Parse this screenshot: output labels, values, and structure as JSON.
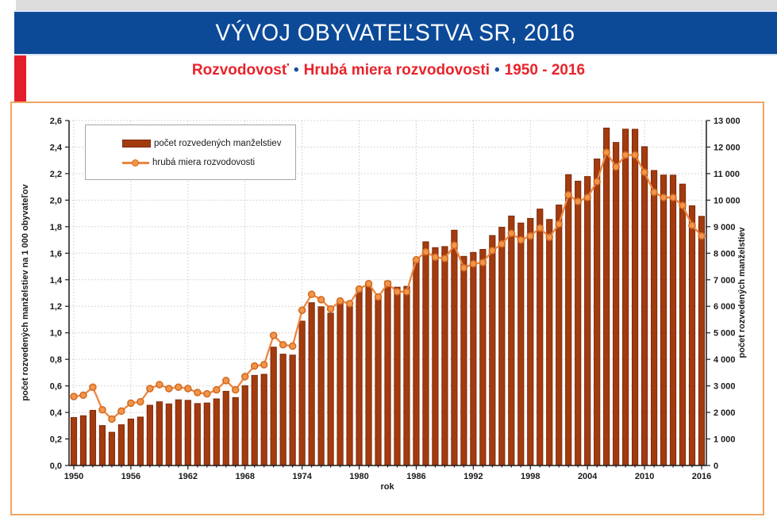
{
  "header": {
    "title": "VÝVOJ OBYVATEĽSTVA SR, 2016"
  },
  "subtitle": {
    "part1": "Rozvodovosť",
    "bullet": "•",
    "part2": "Hrubá miera rozvodovosti",
    "part3": "1950 - 2016",
    "text_color": "#E8232A",
    "bullet_color": "#1B4E9E"
  },
  "colors": {
    "header_bg": "#0C4A98",
    "accent_red": "#E31E2B",
    "box_border": "#F2A563",
    "bar_fill": "#A33B0E",
    "bar_stroke": "#7C2A0C",
    "line": "#EE8640",
    "marker_fill": "#F2954A",
    "marker_stroke": "#D2691E",
    "gridline": "#C9C9C9",
    "axis": "#1a1a1a"
  },
  "chart_data": {
    "type": "bar",
    "subtype": "bar+line combo, dual axis",
    "title": "Rozvodovosť • Hrubá miera rozvodovosti • 1950 - 2016",
    "x": [
      1950,
      1951,
      1952,
      1953,
      1954,
      1955,
      1956,
      1957,
      1958,
      1959,
      1960,
      1961,
      1962,
      1963,
      1964,
      1965,
      1966,
      1967,
      1968,
      1969,
      1970,
      1971,
      1972,
      1973,
      1974,
      1975,
      1976,
      1977,
      1978,
      1979,
      1980,
      1981,
      1982,
      1983,
      1984,
      1985,
      1986,
      1987,
      1988,
      1989,
      1990,
      1991,
      1992,
      1993,
      1994,
      1995,
      1996,
      1997,
      1998,
      1999,
      2000,
      2001,
      2002,
      2003,
      2004,
      2005,
      2006,
      2007,
      2008,
      2009,
      2010,
      2011,
      2012,
      2013,
      2014,
      2015,
      2016
    ],
    "series": [
      {
        "name": "počet rozvedených manželstiev",
        "type": "bar",
        "axis": "right",
        "values": [
          1807,
          1874,
          2078,
          1505,
          1251,
          1535,
          1752,
          1825,
          2270,
          2400,
          2320,
          2475,
          2455,
          2335,
          2355,
          2510,
          2795,
          2560,
          3005,
          3395,
          3437,
          4460,
          4195,
          4160,
          5440,
          6135,
          5980,
          5740,
          6130,
          6000,
          6645,
          6870,
          6420,
          6950,
          6720,
          6750,
          7776,
          8430,
          8210,
          8250,
          8867,
          7881,
          8030,
          8143,
          8666,
          8978,
          9402,
          9138,
          9312,
          9664,
          9273,
          9817,
          10960,
          10716,
          10889,
          11553,
          12716,
          12174,
          12675,
          12671,
          12015,
          11117,
          10945,
          10942,
          10604,
          9786,
          9389
        ]
      },
      {
        "name": "hrubá miera rozvodovosti",
        "type": "line",
        "axis": "left",
        "values": [
          0.52,
          0.53,
          0.59,
          0.42,
          0.35,
          0.41,
          0.47,
          0.48,
          0.58,
          0.61,
          0.58,
          0.59,
          0.58,
          0.55,
          0.54,
          0.57,
          0.64,
          0.57,
          0.67,
          0.75,
          0.76,
          0.98,
          0.91,
          0.9,
          1.17,
          1.29,
          1.25,
          1.18,
          1.24,
          1.22,
          1.33,
          1.37,
          1.27,
          1.37,
          1.31,
          1.31,
          1.55,
          1.61,
          1.57,
          1.56,
          1.66,
          1.49,
          1.52,
          1.53,
          1.62,
          1.67,
          1.75,
          1.7,
          1.73,
          1.79,
          1.72,
          1.82,
          2.04,
          1.99,
          2.02,
          2.14,
          2.36,
          2.25,
          2.34,
          2.34,
          2.21,
          2.06,
          2.02,
          2.02,
          1.96,
          1.81,
          1.73
        ]
      }
    ],
    "left_axis": {
      "label": "počet rozvedených manželstiev na 1 000 obyvateľov",
      "min": 0.0,
      "max": 2.6,
      "step": 0.2,
      "decimal_separator": ","
    },
    "right_axis": {
      "label": "počet rozvedených manželstiev",
      "min": 0,
      "max": 13000,
      "step": 1000,
      "thousands_separator": " "
    },
    "x_axis": {
      "label": "rok",
      "tick_years": [
        1950,
        1956,
        1962,
        1968,
        1974,
        1980,
        1986,
        1992,
        1998,
        2004,
        2010,
        2016
      ]
    },
    "legend": {
      "position": "top-left inside plot",
      "items": [
        "počet rozvedených manželstiev",
        "hrubá miera rozvodovosti"
      ]
    },
    "grid": "dotted horizontal at every 0.2 and vertical at every 6-year tick"
  }
}
